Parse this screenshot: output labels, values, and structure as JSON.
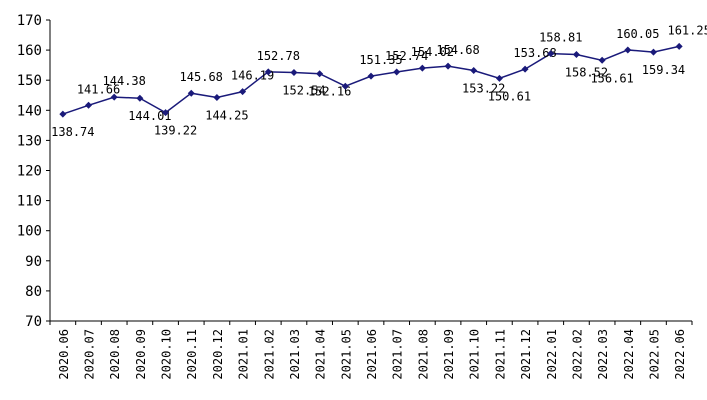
{
  "chart_data": {
    "type": "line",
    "categories": [
      "2020.06",
      "2020.07",
      "2020.08",
      "2020.09",
      "2020.10",
      "2020.11",
      "2020.12",
      "2021.01",
      "2021.02",
      "2021.03",
      "2021.04",
      "2021.05",
      "2021.06",
      "2021.07",
      "2021.08",
      "2021.09",
      "2021.10",
      "2021.11",
      "2021.12",
      "2022.01",
      "2022.02",
      "2022.03",
      "2022.04",
      "2022.05",
      "2022.06"
    ],
    "series": [
      {
        "color": "#1a1a7a",
        "values": [
          138.74,
          141.66,
          144.38,
          144.01,
          139.22,
          145.68,
          144.25,
          146.19,
          152.78,
          152.54,
          152.16,
          148.0,
          151.35,
          152.74,
          154.02,
          154.68,
          153.22,
          150.61,
          153.68,
          158.81,
          158.52,
          156.61,
          160.05,
          159.34,
          161.25
        ],
        "value_labels": [
          "138.74",
          "141.66",
          "144.38",
          "144.01",
          "139.22",
          "145.68",
          "144.25",
          "146.19",
          "152.78",
          "152.54",
          "152.16",
          null,
          "151.35",
          "152.74",
          "154.02",
          "154.68",
          "153.22",
          "150.61",
          "153.68",
          "158.81",
          "158.52",
          "156.61",
          "160.05",
          "159.34",
          "161.25"
        ]
      }
    ],
    "ylim": [
      70,
      170
    ],
    "yticks": [
      70,
      80,
      90,
      100,
      110,
      120,
      130,
      140,
      150,
      160,
      170
    ],
    "grid": false
  }
}
